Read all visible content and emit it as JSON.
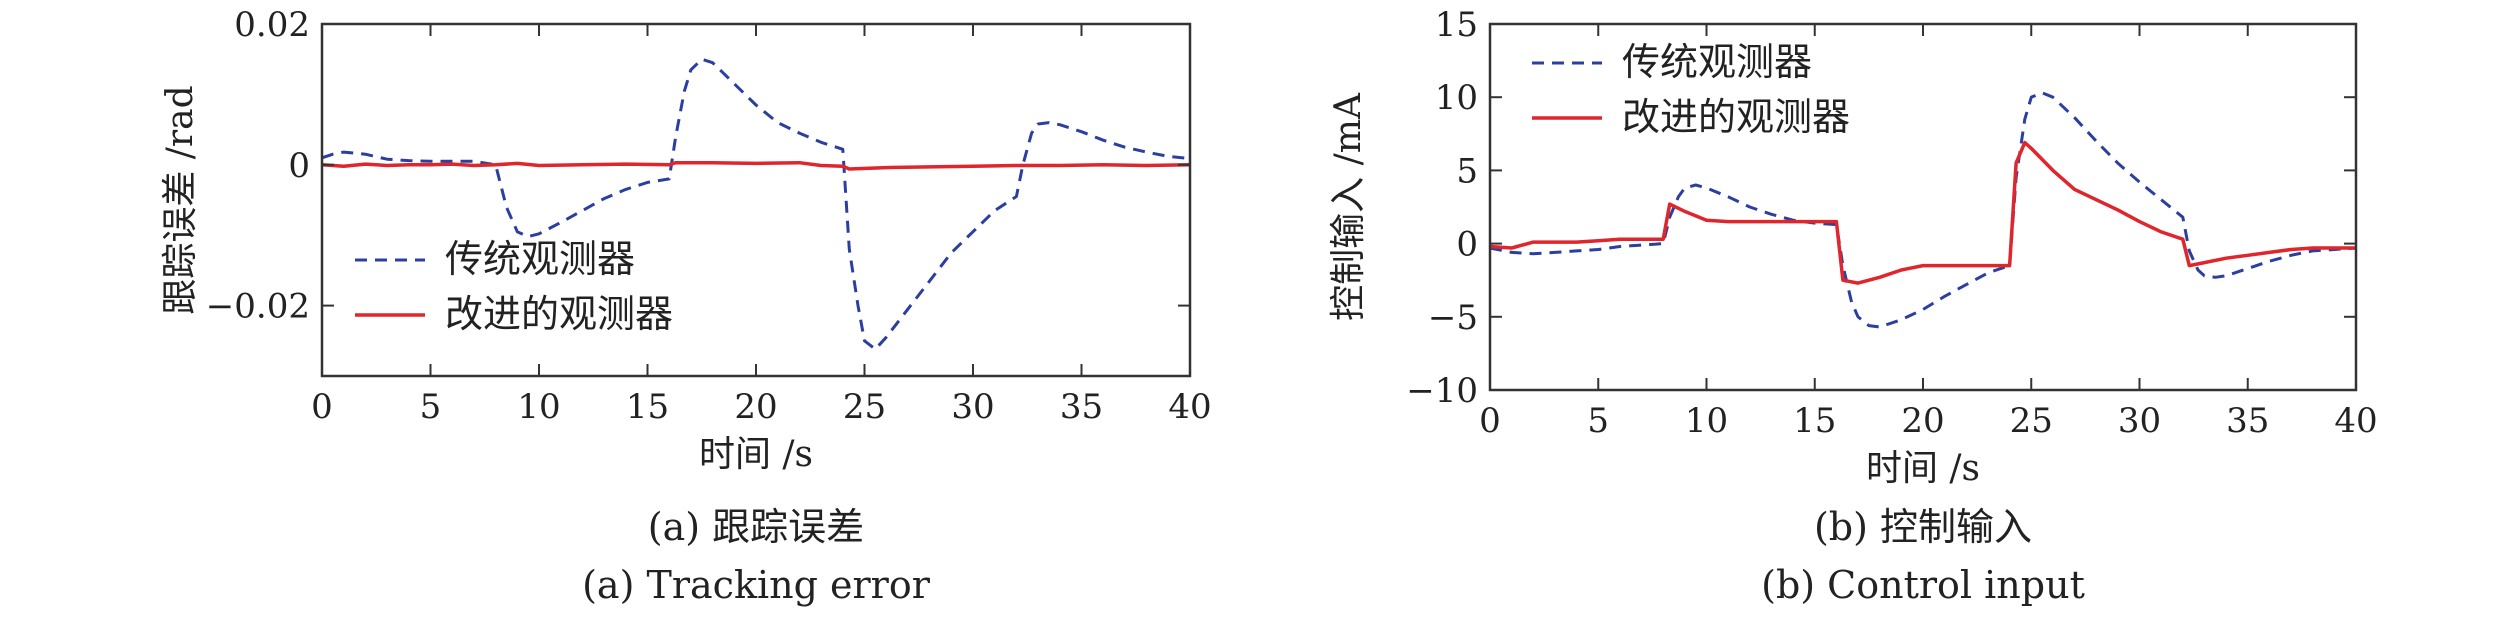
{
  "chart_data": [
    {
      "type": "line",
      "xlabel": "时间 /s",
      "ylabel": "跟踪误差 /rad",
      "caption_zh": "(a) 跟踪误差",
      "caption_en": "(a) Tracking error",
      "xlim": [
        0,
        40
      ],
      "ylim": [
        -0.03,
        0.02
      ],
      "xticks": [
        0,
        5,
        10,
        15,
        20,
        25,
        30,
        35,
        40
      ],
      "yticks": [
        0.02,
        0,
        -0.02
      ],
      "ytick_labels": [
        "0.02",
        "0",
        "−0.02"
      ],
      "grid": false,
      "legend_position": "bottom-left",
      "series": [
        {
          "name": "传统观测器",
          "color": "#2b3fa0",
          "style": "dashed",
          "x": [
            0,
            0.5,
            1,
            2,
            3,
            4,
            5,
            6,
            7,
            8,
            8.5,
            9,
            9.5,
            10,
            11,
            12,
            13,
            14,
            15,
            16,
            16.3,
            16.7,
            17,
            17.5,
            18,
            19,
            20,
            21,
            22,
            23,
            24,
            24.3,
            24.7,
            25,
            25.5,
            26,
            27,
            28,
            29,
            30,
            31,
            32,
            32.3,
            32.7,
            33,
            33.5,
            34,
            35,
            36,
            37,
            38,
            39,
            40
          ],
          "y": [
            0.001,
            0.0015,
            0.0018,
            0.0015,
            0.0008,
            0.0006,
            0.0005,
            0.0005,
            0.0005,
            0.0,
            -0.006,
            -0.0095,
            -0.0102,
            -0.0098,
            -0.0082,
            -0.0065,
            -0.0048,
            -0.0035,
            -0.0025,
            -0.002,
            0.004,
            0.0105,
            0.0135,
            0.015,
            0.0145,
            0.0115,
            0.0085,
            0.006,
            0.0045,
            0.0032,
            0.0022,
            -0.012,
            -0.02,
            -0.025,
            -0.0262,
            -0.0245,
            -0.0205,
            -0.0165,
            -0.0125,
            -0.0095,
            -0.0065,
            -0.0045,
            0.0,
            0.0045,
            0.0058,
            0.006,
            0.0057,
            0.0047,
            0.0035,
            0.0025,
            0.0018,
            0.0012,
            0.0009
          ]
        },
        {
          "name": "改进的观测器",
          "color": "#e0262d",
          "style": "solid",
          "x": [
            0,
            1,
            2,
            3,
            4,
            5,
            6,
            7,
            8,
            9,
            10,
            12,
            14,
            16,
            16.3,
            18,
            20,
            22,
            23,
            24,
            24.3,
            26,
            28,
            30,
            32,
            34,
            36,
            38,
            40
          ],
          "y": [
            0.0,
            -0.0002,
            0.0001,
            -0.0001,
            0.0,
            0.0,
            0.0001,
            -0.0001,
            0.0,
            0.0002,
            -0.0001,
            0.0,
            0.0001,
            0.0,
            0.0003,
            0.0003,
            0.0002,
            0.0003,
            -0.0001,
            -0.0002,
            -0.0006,
            -0.0004,
            -0.0003,
            -0.0002,
            -0.0001,
            -0.0001,
            0.0,
            -0.0001,
            0.0
          ]
        }
      ]
    },
    {
      "type": "line",
      "xlabel": "时间 /s",
      "ylabel": "控制输入 /mA",
      "caption_zh": "(b) 控制输入",
      "caption_en": "(b) Control input",
      "xlim": [
        0,
        40
      ],
      "ylim": [
        -10,
        15
      ],
      "xticks": [
        0,
        5,
        10,
        15,
        20,
        25,
        30,
        35,
        40
      ],
      "yticks": [
        15,
        10,
        5,
        0,
        -5,
        -10
      ],
      "ytick_labels": [
        "15",
        "10",
        "5",
        "0",
        "−5",
        "−10"
      ],
      "grid": false,
      "legend_position": "top-left",
      "series": [
        {
          "name": "传统观测器",
          "color": "#2b3fa0",
          "style": "dashed",
          "x": [
            0,
            1,
            2,
            3,
            4,
            5,
            6,
            7,
            8,
            8.3,
            8.7,
            9,
            9.5,
            10,
            11,
            12,
            13,
            14,
            15,
            16,
            16.3,
            16.7,
            17,
            17.5,
            18,
            19,
            20,
            21,
            22,
            23,
            24,
            24.3,
            24.7,
            25,
            25.5,
            26,
            27,
            28,
            29,
            30,
            31,
            32,
            32.3,
            32.7,
            33,
            33.5,
            34,
            35,
            36,
            37,
            38,
            39,
            40
          ],
          "y": [
            -0.3,
            -0.6,
            -0.7,
            -0.6,
            -0.5,
            -0.4,
            -0.2,
            -0.1,
            0.0,
            1.8,
            3.2,
            3.8,
            4.0,
            3.8,
            3.2,
            2.5,
            2.0,
            1.6,
            1.4,
            1.3,
            -1.5,
            -4.0,
            -5.0,
            -5.6,
            -5.7,
            -5.2,
            -4.5,
            -3.6,
            -2.8,
            -2.0,
            -1.5,
            4.5,
            8.5,
            10.0,
            10.3,
            10.0,
            8.6,
            7.0,
            5.5,
            4.2,
            3.0,
            1.8,
            -0.5,
            -1.8,
            -2.2,
            -2.3,
            -2.2,
            -1.7,
            -1.2,
            -0.8,
            -0.5,
            -0.4,
            -0.3
          ]
        },
        {
          "name": "改进的观测器",
          "color": "#e0262d",
          "style": "solid",
          "x": [
            0,
            1,
            2,
            3,
            4,
            5,
            6,
            7,
            8,
            8.3,
            9,
            10,
            11,
            12,
            13,
            14,
            15,
            16,
            16.3,
            17,
            18,
            19,
            20,
            21,
            22,
            23,
            24,
            24.3,
            24.7,
            25,
            26,
            27,
            28,
            29,
            30,
            31,
            32,
            32.3,
            33,
            34,
            35,
            36,
            37,
            38,
            39,
            40
          ],
          "y": [
            -0.2,
            -0.3,
            0.1,
            0.1,
            0.1,
            0.2,
            0.3,
            0.3,
            0.3,
            2.7,
            2.2,
            1.6,
            1.5,
            1.5,
            1.5,
            1.5,
            1.5,
            1.5,
            -2.5,
            -2.7,
            -2.3,
            -1.8,
            -1.5,
            -1.5,
            -1.5,
            -1.5,
            -1.5,
            5.5,
            6.9,
            6.5,
            5.0,
            3.7,
            3.0,
            2.3,
            1.5,
            0.8,
            0.3,
            -1.5,
            -1.3,
            -1.0,
            -0.8,
            -0.6,
            -0.4,
            -0.3,
            -0.3,
            -0.3
          ]
        }
      ]
    }
  ]
}
